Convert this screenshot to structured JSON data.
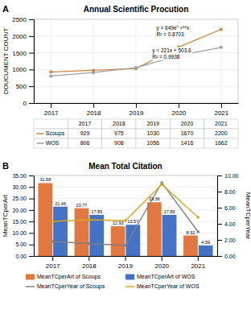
{
  "chart_data": [
    {
      "type": "line",
      "title": "Annual Scientific Procution",
      "ylabel": "DOUCUMENT COUNT",
      "x": [
        2017,
        2018,
        2019,
        2020,
        2021
      ],
      "xlim": [
        2016.6,
        2021.4
      ],
      "xticks": [
        2017,
        2018,
        2019,
        2020,
        2021
      ],
      "ylim": [
        0,
        2500
      ],
      "yticks": [
        0,
        500,
        1000,
        1500,
        2000,
        2500
      ],
      "grid": true,
      "marker": "circle",
      "series": [
        {
          "name": "Scoups",
          "color": "#CD853F",
          "values": [
            929,
            975,
            1030,
            1670,
            2200
          ]
        },
        {
          "name": "WOS",
          "color": "#A0A0A0",
          "values": [
            806,
            908,
            1056,
            1416,
            1662
          ]
        }
      ],
      "annotations": [
        "A",
        "y = 649e°·²⁸⁸x\nR² = 0.8703",
        "y = 221x + 503.6\nR² = 0.9938"
      ]
    },
    {
      "type": "bar",
      "title": "Mean Total Citation",
      "ylabel": "MeanTCperArt",
      "y2label": "MeanTCperYear",
      "categories": [
        "2017",
        "2018",
        "2019",
        "2020",
        "2021"
      ],
      "ylim": [
        0,
        35
      ],
      "yticks": [
        {
          "value": 0,
          "label": "0.00"
        },
        {
          "value": 5,
          "label": "5.00"
        },
        {
          "value": 10,
          "label": "10.00"
        },
        {
          "value": 15,
          "label": "15.00"
        },
        {
          "value": 20,
          "label": "20.00"
        },
        {
          "value": 25,
          "label": "25.00"
        },
        {
          "value": 30,
          "label": "30.00"
        },
        {
          "value": 35,
          "label": "35.00"
        }
      ],
      "y2lim": [
        0,
        10
      ],
      "y2ticks": [
        {
          "value": 0,
          "label": "0.00"
        },
        {
          "value": 2,
          "label": "2.00"
        },
        {
          "value": 4,
          "label": "4.00"
        },
        {
          "value": 6,
          "label": "6.00"
        },
        {
          "value": 8,
          "label": "8.00"
        },
        {
          "value": 10,
          "label": "10.00"
        }
      ],
      "grid": true,
      "legend": "bottom",
      "series": [
        {
          "name": "MeanTCperArt of Scoups",
          "type": "bar",
          "color": "#E07840",
          "data_labels": true,
          "values": [
            31.68,
            20.77,
            12.93,
            23.36,
            8.92
          ]
        },
        {
          "name": "MeanTCperArt of WOS",
          "type": "bar",
          "color": "#4472C4",
          "data_labels": true,
          "values": [
            21.46,
            17.89,
            13.57,
            17.89,
            4.59
          ]
        },
        {
          "name": "MeanTCperYear of Scoups",
          "type": "line",
          "axis": "y2",
          "marker": "circle",
          "color": "#808080",
          "values": [
            1.8,
            1.55,
            1.3,
            9.1,
            3.0
          ]
        },
        {
          "name": "MeanTCperYear of WOS",
          "type": "line",
          "axis": "y2",
          "marker": "circle",
          "color": "#DAA520",
          "values": [
            4.3,
            4.5,
            4.4,
            8.9,
            4.8
          ]
        }
      ],
      "annotations": [
        "B"
      ]
    }
  ]
}
